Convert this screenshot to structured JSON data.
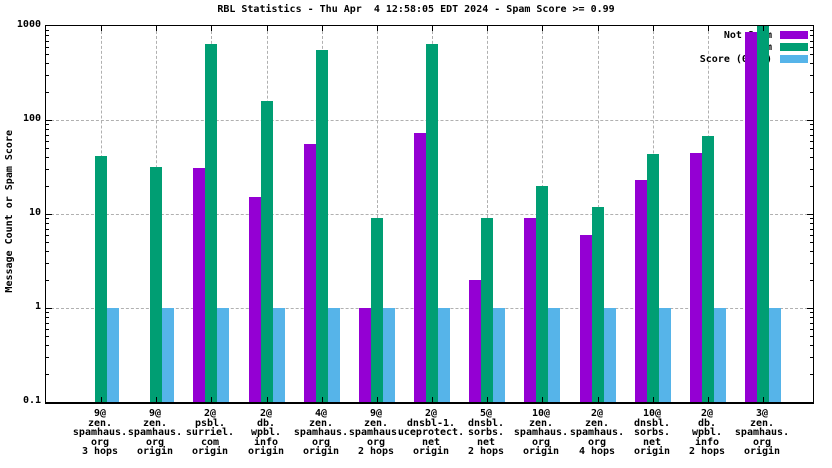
{
  "title": "RBL Statistics - Thu Apr  4 12:58:05 EDT 2024 - Spam Score >= 0.99",
  "y_axis": {
    "label": "Message Count or Spam Score",
    "tick_labels": [
      "1000",
      "100",
      "10",
      "1",
      "0.1"
    ]
  },
  "legend": {
    "position": "top-right",
    "entries": [
      {
        "label": "Not Spam",
        "color": "#9400d3"
      },
      {
        "label": "Spam",
        "color": "#009e73"
      },
      {
        "label": "Score (0..1)",
        "color": "#56b4e9"
      }
    ]
  },
  "colors": {
    "not_spam": "#9400d3",
    "spam": "#009e73",
    "score": "#56b4e9",
    "grid": "#b0b0b0",
    "border": "#000000",
    "background": "#ffffff"
  },
  "chart_data": {
    "type": "bar",
    "title": "RBL Statistics - Thu Apr  4 12:58:05 EDT 2024 - Spam Score >= 0.99",
    "xlabel": "",
    "ylabel": "Message Count or Spam Score",
    "y_scale": "log10",
    "ylim": [
      0.1,
      1000
    ],
    "yticks": [
      1000,
      100,
      10,
      1,
      0.1
    ],
    "grid": true,
    "legend_position": "top-right",
    "categories": [
      [
        "9@",
        "zen.",
        "spamhaus.",
        "org",
        "3 hops"
      ],
      [
        "9@",
        "zen.",
        "spamhaus.",
        "org",
        "origin"
      ],
      [
        "2@",
        "psbl.",
        "surriel.",
        "com",
        "origin"
      ],
      [
        "2@",
        "db.",
        "wpbl.",
        "info",
        "origin"
      ],
      [
        "4@",
        "zen.",
        "spamhaus.",
        "org",
        "origin"
      ],
      [
        "9@",
        "zen.",
        "spamhaus.",
        "org",
        "2 hops"
      ],
      [
        "2@",
        "dnsbl-1.",
        "uceprotect.",
        "net",
        "origin"
      ],
      [
        "5@",
        "dnsbl.",
        "sorbs.",
        "net",
        "2 hops"
      ],
      [
        "10@",
        "zen.",
        "spamhaus.",
        "org",
        "origin"
      ],
      [
        "2@",
        "zen.",
        "spamhaus.",
        "org",
        "4 hops"
      ],
      [
        "10@",
        "dnsbl.",
        "sorbs.",
        "net",
        "origin"
      ],
      [
        "2@",
        "db.",
        "wpbl.",
        "info",
        "2 hops"
      ],
      [
        "3@",
        "zen.",
        "spamhaus.",
        "org",
        "origin"
      ]
    ],
    "series": [
      {
        "name": "Not Spam",
        "color": "#9400d3",
        "values": [
          null,
          null,
          31,
          15,
          55,
          1,
          73,
          2,
          9,
          6,
          23,
          45,
          860
        ]
      },
      {
        "name": "Spam",
        "color": "#009e73",
        "values": [
          41,
          32,
          640,
          160,
          550,
          9,
          640,
          9,
          20,
          12,
          43,
          67,
          1000
        ]
      },
      {
        "name": "Score (0..1)",
        "color": "#56b4e9",
        "values": [
          1,
          1,
          1,
          1,
          1,
          1,
          1,
          1,
          1,
          1,
          1,
          1,
          1
        ]
      }
    ]
  }
}
